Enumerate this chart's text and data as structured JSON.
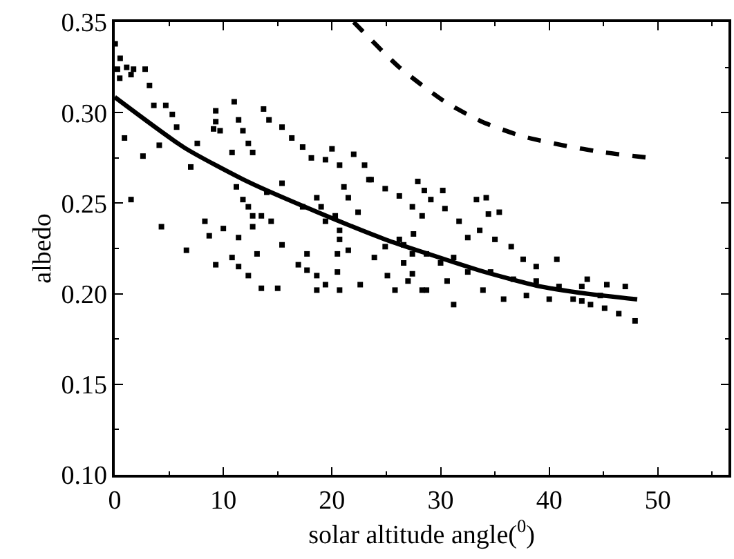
{
  "chart_data": {
    "type": "scatter",
    "xlabel": "solar altitude angle($^{0}$)",
    "ylabel": "albedo",
    "xlim": [
      0,
      56.5
    ],
    "xticks": [
      0,
      10,
      20,
      30,
      40,
      50
    ],
    "ylim": [
      0.1,
      0.35
    ],
    "yticks": [
      {
        "value": 0.1,
        "label": "0.10"
      },
      {
        "value": 0.15,
        "label": "0.15"
      },
      {
        "value": 0.2,
        "label": "0.20"
      },
      {
        "value": 0.25,
        "label": "0.25"
      },
      {
        "value": 0.3,
        "label": "0.30"
      },
      {
        "value": 0.35,
        "label": "0.35"
      }
    ],
    "series": [
      {
        "marker": "square",
        "color": "#000000",
        "x": [
          0.04,
          0.5,
          0.25,
          1.1,
          1.73,
          2.8,
          3.2,
          0.46,
          1.5,
          3.6,
          4.7,
          0.9,
          2.6,
          1.5,
          4.1,
          4.3,
          6.6,
          5.3,
          5.7,
          7.0,
          7.6,
          9.3,
          9.3,
          9.7,
          9.1,
          11,
          11.4,
          11.8,
          12.3,
          12.7,
          10.8,
          13.7,
          14.2,
          15.4,
          16.3,
          17.3,
          18.1,
          20,
          19.4,
          20.7,
          22,
          23,
          23.6,
          24.9,
          26.2,
          27.4,
          28.3,
          11.2,
          11.8,
          12.3,
          12.7,
          14,
          13.5,
          15.4,
          17.3,
          18.6,
          19,
          19.4,
          20.3,
          20.7,
          21.1,
          21.5,
          22.4,
          23.4,
          8.3,
          8.7,
          10,
          9.3,
          10.8,
          11.4,
          11.4,
          12.3,
          13.1,
          12.7,
          14.4,
          15,
          13.5,
          15.4,
          16.9,
          17.7,
          18.6,
          18.6,
          19.4,
          20.5,
          20.5,
          21.5,
          22.6,
          23.9,
          25.1,
          25.8,
          26.6,
          27.4,
          28.3,
          24.9,
          26.2,
          27.4,
          20.7,
          20.7,
          17.7,
          27.9,
          28.5,
          30.2,
          29.1,
          30.4,
          31.7,
          33.3,
          34.2,
          34.4,
          35.4,
          32.5,
          33.6,
          35,
          36.5,
          37.6,
          40.7,
          38.8,
          26.6,
          27.5,
          28.7,
          30,
          31.2,
          32.5,
          34.6,
          36.7,
          38.8,
          40.9,
          43,
          43.5,
          45.3,
          47,
          27,
          28.7,
          31.2,
          30.6,
          33.9,
          35.8,
          37.9,
          40,
          42.2,
          43.8,
          45.1,
          46.4,
          47.9,
          44.7,
          43
        ],
        "values": [
          0.338,
          0.33,
          0.324,
          0.325,
          0.324,
          0.324,
          0.315,
          0.319,
          0.321,
          0.304,
          0.304,
          0.286,
          0.276,
          0.252,
          0.282,
          0.237,
          0.224,
          0.299,
          0.292,
          0.27,
          0.283,
          0.301,
          0.295,
          0.29,
          0.291,
          0.306,
          0.296,
          0.29,
          0.283,
          0.278,
          0.278,
          0.302,
          0.296,
          0.292,
          0.286,
          0.281,
          0.275,
          0.28,
          0.274,
          0.271,
          0.277,
          0.271,
          0.263,
          0.258,
          0.254,
          0.248,
          0.243,
          0.259,
          0.252,
          0.248,
          0.243,
          0.256,
          0.243,
          0.261,
          0.248,
          0.253,
          0.248,
          0.24,
          0.243,
          0.235,
          0.259,
          0.253,
          0.245,
          0.263,
          0.24,
          0.232,
          0.236,
          0.216,
          0.22,
          0.231,
          0.215,
          0.21,
          0.222,
          0.237,
          0.24,
          0.203,
          0.203,
          0.227,
          0.216,
          0.213,
          0.21,
          0.202,
          0.205,
          0.212,
          0.222,
          0.224,
          0.205,
          0.22,
          0.21,
          0.202,
          0.217,
          0.211,
          0.202,
          0.226,
          0.23,
          0.222,
          0.23,
          0.202,
          0.222,
          0.262,
          0.257,
          0.257,
          0.252,
          0.247,
          0.24,
          0.252,
          0.253,
          0.244,
          0.245,
          0.231,
          0.235,
          0.23,
          0.226,
          0.219,
          0.219,
          0.215,
          0.227,
          0.233,
          0.222,
          0.217,
          0.22,
          0.212,
          0.212,
          0.208,
          0.207,
          0.204,
          0.204,
          0.208,
          0.205,
          0.204,
          0.207,
          0.202,
          0.194,
          0.207,
          0.202,
          0.197,
          0.199,
          0.197,
          0.197,
          0.194,
          0.192,
          0.189,
          0.185,
          0.199,
          0.196
        ]
      },
      {
        "type": "line",
        "marker": "none",
        "line_style": "solid",
        "color": "#000000",
        "x": [
          0,
          6.4,
          12.3,
          18.6,
          24.9,
          28.7,
          33.5,
          38.8,
          43.5,
          48.1
        ],
        "values": [
          0.3086,
          0.2807,
          0.2617,
          0.2452,
          0.23,
          0.2223,
          0.213,
          0.2045,
          0.2,
          0.1969
        ]
      },
      {
        "type": "line",
        "marker": "none",
        "line_style": "dashed",
        "color": "#000000",
        "x": [
          22,
          26.2,
          30.4,
          33.8,
          37.5,
          41.2,
          45.1,
          49.3
        ],
        "values": [
          0.35,
          0.325,
          0.306,
          0.295,
          0.287,
          0.282,
          0.278,
          0.275
        ]
      }
    ]
  }
}
